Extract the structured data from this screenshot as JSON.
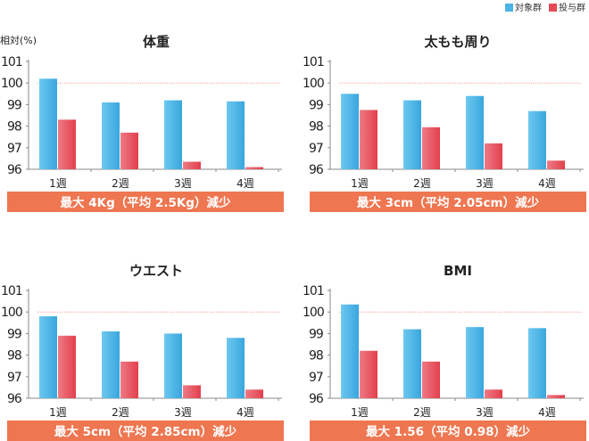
{
  "legend": {
    "series": [
      {
        "name": "対象群",
        "color": "#4ab4e6"
      },
      {
        "name": "投与群",
        "color": "#e64a55"
      }
    ]
  },
  "y_unit_label": "相対(%)",
  "banner_color": "#ee7650",
  "chart_data": [
    {
      "type": "bar",
      "title": "体重",
      "categories": [
        "1週",
        "2週",
        "3週",
        "4週"
      ],
      "series": [
        {
          "name": "対象群",
          "values": [
            100.2,
            99.1,
            99.2,
            99.15
          ]
        },
        {
          "name": "投与群",
          "values": [
            98.3,
            97.7,
            96.35,
            96.1
          ]
        }
      ],
      "ylim": [
        96,
        101
      ],
      "yticks": [
        "96",
        "97",
        "98",
        "99",
        "100",
        "101"
      ],
      "reference_line": 100,
      "ylabel": "相対(%)",
      "annotation": "最大 4Kg（平均 2.5Kg）減少"
    },
    {
      "type": "bar",
      "title": "太もも周り",
      "categories": [
        "1週",
        "2週",
        "3週",
        "4週"
      ],
      "series": [
        {
          "name": "対象群",
          "values": [
            99.5,
            99.2,
            99.4,
            98.7
          ]
        },
        {
          "name": "投与群",
          "values": [
            98.75,
            97.95,
            97.2,
            96.4
          ]
        }
      ],
      "ylim": [
        96,
        101
      ],
      "yticks": [
        "96",
        "97",
        "98",
        "99",
        "100",
        "101"
      ],
      "reference_line": 100,
      "annotation": "最大 3cm（平均 2.05cm）減少"
    },
    {
      "type": "bar",
      "title": "ウエスト",
      "categories": [
        "1週",
        "2週",
        "3週",
        "4週"
      ],
      "series": [
        {
          "name": "対象群",
          "values": [
            99.8,
            99.1,
            99.0,
            98.8
          ]
        },
        {
          "name": "投与群",
          "values": [
            98.9,
            97.7,
            96.6,
            96.4
          ]
        }
      ],
      "ylim": [
        96,
        101
      ],
      "yticks": [
        "96",
        "97",
        "98",
        "99",
        "100",
        "101"
      ],
      "reference_line": 100,
      "annotation": "最大 5cm（平均 2.85cm）減少"
    },
    {
      "type": "bar",
      "title": "BMI",
      "categories": [
        "1週",
        "2週",
        "3週",
        "4週"
      ],
      "series": [
        {
          "name": "対象群",
          "values": [
            100.35,
            99.2,
            99.3,
            99.25
          ]
        },
        {
          "name": "投与群",
          "values": [
            98.2,
            97.7,
            96.4,
            96.15
          ]
        }
      ],
      "ylim": [
        96,
        101
      ],
      "yticks": [
        "96",
        "97",
        "98",
        "99",
        "100",
        "101"
      ],
      "reference_line": 100,
      "annotation": "最大 1.56（平均 0.98）減少"
    }
  ]
}
